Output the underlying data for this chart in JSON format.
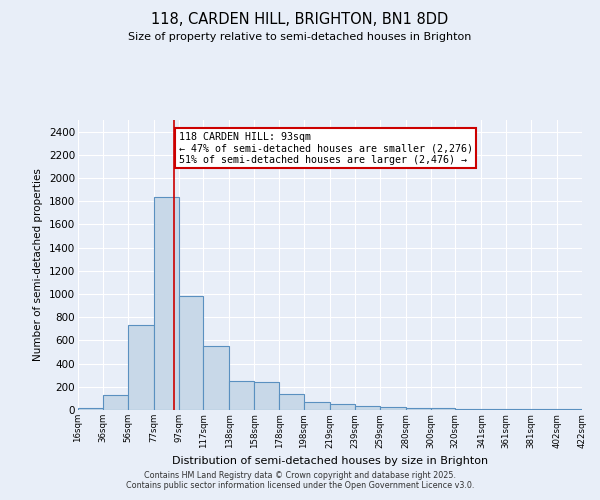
{
  "title_line1": "118, CARDEN HILL, BRIGHTON, BN1 8DD",
  "title_line2": "Size of property relative to semi-detached houses in Brighton",
  "xlabel": "Distribution of semi-detached houses by size in Brighton",
  "ylabel": "Number of semi-detached properties",
  "bin_edges": [
    16,
    36,
    56,
    77,
    97,
    117,
    138,
    158,
    178,
    198,
    219,
    239,
    259,
    280,
    300,
    320,
    341,
    361,
    381,
    402,
    422
  ],
  "bar_heights": [
    15,
    130,
    730,
    1840,
    985,
    550,
    250,
    245,
    135,
    70,
    50,
    35,
    25,
    20,
    20,
    10,
    5,
    5,
    5,
    5
  ],
  "bar_color": "#c8d8e8",
  "bar_edge_color": "#5a90c0",
  "bar_edge_width": 0.8,
  "background_color": "#e8eef8",
  "grid_color": "#ffffff",
  "property_size": 93,
  "red_line_color": "#cc0000",
  "annotation_text": "118 CARDEN HILL: 93sqm\n← 47% of semi-detached houses are smaller (2,276)\n51% of semi-detached houses are larger (2,476) →",
  "annotation_box_color": "#ffffff",
  "annotation_border_color": "#cc0000",
  "ylim": [
    0,
    2500
  ],
  "yticks": [
    0,
    200,
    400,
    600,
    800,
    1000,
    1200,
    1400,
    1600,
    1800,
    2000,
    2200,
    2400
  ],
  "footer_text": "Contains HM Land Registry data © Crown copyright and database right 2025.\nContains public sector information licensed under the Open Government Licence v3.0.",
  "tick_labels": [
    "16sqm",
    "36sqm",
    "56sqm",
    "77sqm",
    "97sqm",
    "117sqm",
    "138sqm",
    "158sqm",
    "178sqm",
    "198sqm",
    "219sqm",
    "239sqm",
    "259sqm",
    "280sqm",
    "300sqm",
    "320sqm",
    "341sqm",
    "361sqm",
    "381sqm",
    "402sqm",
    "422sqm"
  ]
}
